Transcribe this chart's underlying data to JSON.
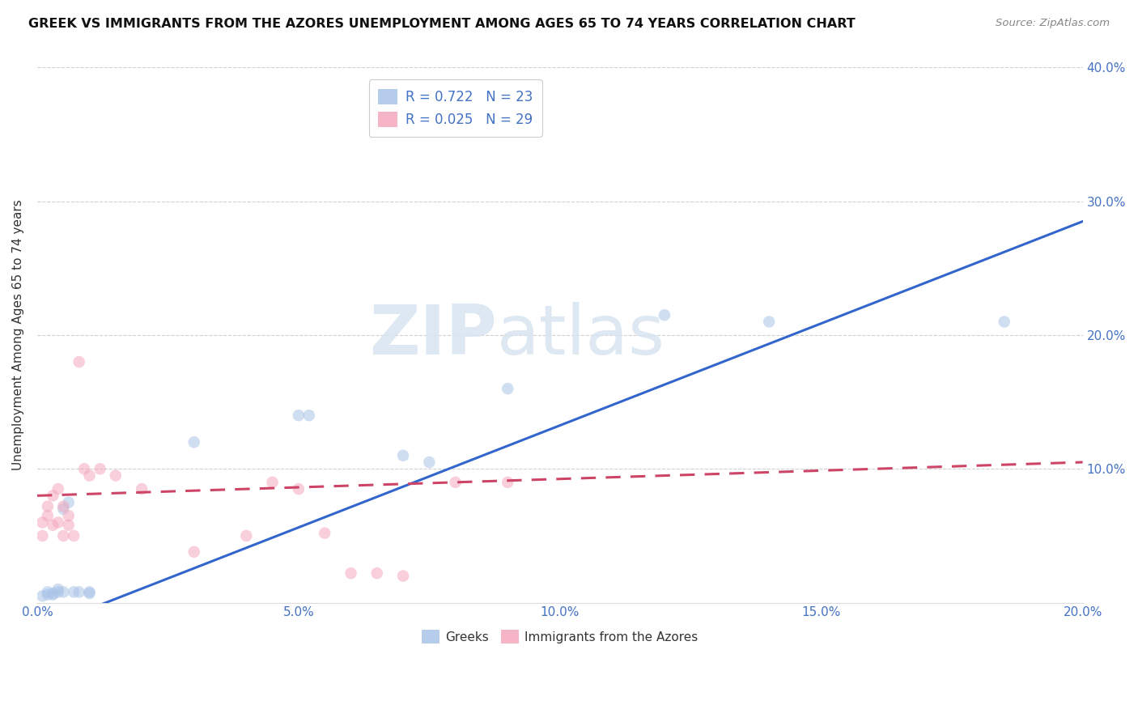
{
  "title": "GREEK VS IMMIGRANTS FROM THE AZORES UNEMPLOYMENT AMONG AGES 65 TO 74 YEARS CORRELATION CHART",
  "source": "Source: ZipAtlas.com",
  "ylabel": "Unemployment Among Ages 65 to 74 years",
  "xlim": [
    0.0,
    0.2
  ],
  "ylim": [
    0.0,
    0.4
  ],
  "xticks": [
    0.0,
    0.05,
    0.1,
    0.15,
    0.2
  ],
  "yticks": [
    0.0,
    0.1,
    0.2,
    0.3,
    0.4
  ],
  "xtick_labels": [
    "0.0%",
    "5.0%",
    "10.0%",
    "15.0%",
    "20.0%"
  ],
  "ytick_labels": [
    "",
    "10.0%",
    "20.0%",
    "30.0%",
    "40.0%"
  ],
  "greek_color": "#aac4e8",
  "azores_color": "#f4a8bc",
  "greek_line_color": "#3366cc",
  "azores_line_color": "#cc4466",
  "background_color": "#ffffff",
  "grid_color": "#d0d0d0",
  "R_greek": 0.722,
  "N_greek": 23,
  "R_azores": 0.025,
  "N_azores": 29,
  "legend_label_greek": "Greeks",
  "legend_label_azores": "Immigrants from the Azores",
  "greek_x": [
    0.001,
    0.002,
    0.002,
    0.003,
    0.003,
    0.004,
    0.004,
    0.005,
    0.005,
    0.006,
    0.007,
    0.008,
    0.01,
    0.01,
    0.03,
    0.05,
    0.052,
    0.07,
    0.075,
    0.09,
    0.12,
    0.14,
    0.185
  ],
  "greek_y": [
    0.005,
    0.006,
    0.008,
    0.006,
    0.007,
    0.008,
    0.01,
    0.008,
    0.07,
    0.075,
    0.008,
    0.008,
    0.008,
    0.007,
    0.12,
    0.14,
    0.14,
    0.11,
    0.105,
    0.16,
    0.215,
    0.21,
    0.21
  ],
  "azores_x": [
    0.001,
    0.001,
    0.002,
    0.002,
    0.003,
    0.003,
    0.004,
    0.004,
    0.005,
    0.005,
    0.006,
    0.006,
    0.007,
    0.008,
    0.009,
    0.01,
    0.012,
    0.015,
    0.02,
    0.03,
    0.04,
    0.045,
    0.05,
    0.055,
    0.06,
    0.065,
    0.07,
    0.08,
    0.09
  ],
  "azores_y": [
    0.05,
    0.06,
    0.065,
    0.072,
    0.058,
    0.08,
    0.06,
    0.085,
    0.05,
    0.072,
    0.058,
    0.065,
    0.05,
    0.18,
    0.1,
    0.095,
    0.1,
    0.095,
    0.085,
    0.038,
    0.05,
    0.09,
    0.085,
    0.052,
    0.022,
    0.022,
    0.02,
    0.09,
    0.09
  ],
  "watermark_zip": "ZIP",
  "watermark_atlas": "atlas",
  "marker_size": 110,
  "alpha": 0.55
}
